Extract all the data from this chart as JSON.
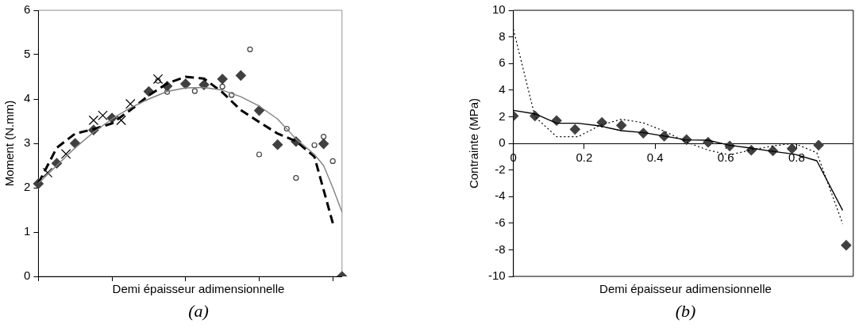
{
  "chart_data": [
    {
      "type": "line",
      "ylabel": "Moment (N.mm)",
      "xlabel": "Demi épaisseur adimensionnelle",
      "annotations": [
        "(a)"
      ],
      "categories": [
        null,
        null,
        null,
        null,
        null,
        null,
        null,
        null,
        null,
        null,
        null,
        null,
        null,
        null,
        null,
        null,
        null,
        null,
        null,
        null,
        null,
        null,
        null,
        null,
        null,
        null,
        null,
        null,
        null,
        null,
        null,
        null,
        null,
        null
      ],
      "ylim": [
        0,
        6
      ],
      "yticks": [
        0,
        1,
        2,
        3,
        4,
        5,
        6
      ],
      "grid": false,
      "legend": false,
      "tick_labels": "y",
      "series": [
        {
          "type": "scatter",
          "marker": "diamond",
          "color": "#404040",
          "values": [
            2.09,
            null,
            2.55,
            null,
            3.0,
            null,
            3.3,
            null,
            3.57,
            null,
            null,
            null,
            4.17,
            null,
            4.29,
            null,
            4.34,
            null,
            4.32,
            null,
            4.45,
            null,
            4.53,
            null,
            3.74,
            null,
            2.97,
            null,
            3.04,
            null,
            null,
            2.99,
            null,
            0
          ]
        },
        {
          "type": "scatter",
          "marker": "cross",
          "color": "#000000",
          "values": [
            null,
            2.34,
            null,
            2.76,
            null,
            null,
            3.52,
            3.63,
            null,
            3.52,
            3.89,
            null,
            null,
            4.45,
            null,
            null,
            null,
            null,
            null,
            null,
            null,
            null,
            null,
            null,
            null,
            null,
            null,
            null,
            null,
            null,
            null,
            null,
            null,
            null
          ]
        },
        {
          "type": "scatter",
          "marker": "circle",
          "color": "#404040",
          "values": [
            null,
            null,
            null,
            null,
            null,
            null,
            null,
            null,
            null,
            null,
            null,
            null,
            null,
            4.41,
            4.16,
            null,
            null,
            4.18,
            null,
            null,
            4.28,
            4.09,
            null,
            5.12,
            2.75,
            null,
            null,
            3.33,
            2.22,
            null,
            2.96,
            3.15,
            2.6,
            null
          ]
        },
        {
          "type": "line",
          "line_style": "solid",
          "color": "#808080",
          "values": [
            2.1,
            null,
            2.5,
            null,
            2.9,
            null,
            3.25,
            null,
            3.55,
            null,
            3.8,
            null,
            4.0,
            null,
            4.17,
            null,
            4.25,
            null,
            4.26,
            null,
            4.2,
            null,
            4.05,
            null,
            3.84,
            null,
            3.55,
            null,
            3.1,
            null,
            2.75,
            2.5,
            2.0,
            1.45
          ]
        },
        {
          "type": "line",
          "line_style": "dashed",
          "color": "#000000",
          "values": [
            2.1,
            null,
            2.9,
            null,
            3.22,
            null,
            3.32,
            null,
            3.45,
            null,
            3.75,
            null,
            4.08,
            null,
            4.35,
            null,
            4.5,
            null,
            4.46,
            null,
            4.15,
            null,
            3.75,
            null,
            3.48,
            null,
            3.22,
            null,
            3.05,
            null,
            2.7,
            null,
            1.2,
            null
          ]
        }
      ]
    },
    {
      "type": "line",
      "ylabel": "Contrainte (MPa)",
      "xlabel": "Demi épaisseur adimensionnelle",
      "annotations": [
        "(b)"
      ],
      "x": [
        0,
        0.061,
        0.122,
        0.183,
        0.244,
        0.305,
        0.366,
        0.427,
        0.488,
        0.549,
        0.61,
        0.671,
        0.732,
        0.793,
        0.857,
        0.93
      ],
      "xlim": [
        0,
        0.96
      ],
      "xticks": [
        0,
        0.2,
        0.4,
        0.6,
        0.8
      ],
      "ylim": [
        -10,
        10
      ],
      "yticks": [
        -10,
        -8,
        -6,
        -4,
        -2,
        0,
        2,
        4,
        6,
        8,
        10
      ],
      "grid": false,
      "legend": false,
      "series": [
        {
          "type": "scatter",
          "marker": "diamond",
          "color": "#404040",
          "x": [
            0,
            0.061,
            0.122,
            0.174,
            0.25,
            0.305,
            0.367,
            0.426,
            0.489,
            0.55,
            0.611,
            0.672,
            0.733,
            0.787,
            0.862,
            0.94
          ],
          "values": [
            2.06,
            2.06,
            1.71,
            1.05,
            1.57,
            1.35,
            0.77,
            0.54,
            0.28,
            0.08,
            -0.2,
            -0.52,
            -0.56,
            -0.4,
            -0.14,
            -7.66
          ]
        },
        {
          "type": "line",
          "line_style": "solid",
          "color": "#000000",
          "values": [
            2.48,
            2.22,
            1.51,
            1.51,
            1.31,
            0.95,
            0.81,
            0.54,
            0.26,
            0.24,
            -0.14,
            -0.36,
            -0.6,
            -0.81,
            -1.31,
            -5.04
          ]
        },
        {
          "type": "line",
          "line_style": "dotted",
          "color": "#000000",
          "values": [
            8.57,
            2.0,
            0.5,
            0.5,
            1.35,
            1.81,
            1.55,
            0.91,
            0.1,
            -0.5,
            -0.87,
            -0.5,
            -0.2,
            0,
            -0.7,
            -6.05
          ]
        }
      ]
    }
  ]
}
